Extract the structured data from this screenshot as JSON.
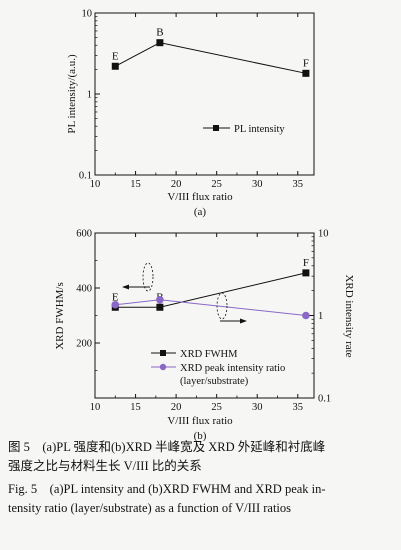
{
  "chart_data": [
    {
      "type": "line",
      "panel_label": "(a)",
      "xlabel": "V/III flux ratio",
      "ylabel": "PL intensity/(a.u.)",
      "y_scale": "log",
      "xlim": [
        10,
        37
      ],
      "ylim": [
        0.1,
        10
      ],
      "x_ticks": [
        "10",
        "15",
        "20",
        "25",
        "30",
        "35"
      ],
      "y_ticks": [
        "0.1",
        "1",
        "10"
      ],
      "legend_position": "right",
      "series": [
        {
          "name": "PL intensity",
          "color": "#111111",
          "marker": "square",
          "x": [
            12.5,
            18,
            36
          ],
          "y": [
            2.2,
            4.3,
            1.8
          ],
          "labels": [
            "E",
            "B",
            "F"
          ]
        }
      ]
    },
    {
      "type": "line",
      "panel_label": "(b)",
      "xlabel": "V/III flux ratio",
      "ylabel": "XRD FWHM/s",
      "y2label": "XRD intensity rate",
      "y2_scale": "log",
      "xlim": [
        10,
        37
      ],
      "ylim": [
        0,
        600
      ],
      "y2lim": [
        0.1,
        10
      ],
      "x_ticks": [
        "10",
        "15",
        "20",
        "25",
        "30",
        "35"
      ],
      "y_ticks": [
        "200",
        "400",
        "600"
      ],
      "y2_ticks": [
        "0.1",
        "1",
        "10"
      ],
      "legend_position": "bottom-left",
      "series": [
        {
          "name": "XRD FWHM",
          "axis": "left",
          "color": "#111111",
          "marker": "square",
          "x": [
            12.5,
            18,
            36
          ],
          "y": [
            330,
            330,
            455
          ],
          "labels": [
            "E",
            "B",
            "F"
          ]
        },
        {
          "name": "XRD peak intensity ratio",
          "name2": "(layer/substrate)",
          "axis": "right",
          "color": "#8a68c8",
          "marker": "circle",
          "x": [
            12.5,
            18,
            36
          ],
          "y": [
            1.35,
            1.55,
            1.0
          ],
          "labels": []
        }
      ]
    }
  ],
  "captions": {
    "zh_line1": "图 5　(a)PL 强度和(b)XRD 半峰宽及 XRD 外延峰和衬底峰",
    "zh_line2": "强度之比与材料生长 V/III 比的关系",
    "en_line1": "Fig. 5　(a)PL intensity and (b)XRD FWHM and XRD peak in-",
    "en_line2": "tensity ratio (layer/substrate) as a function of V/III ratios"
  }
}
